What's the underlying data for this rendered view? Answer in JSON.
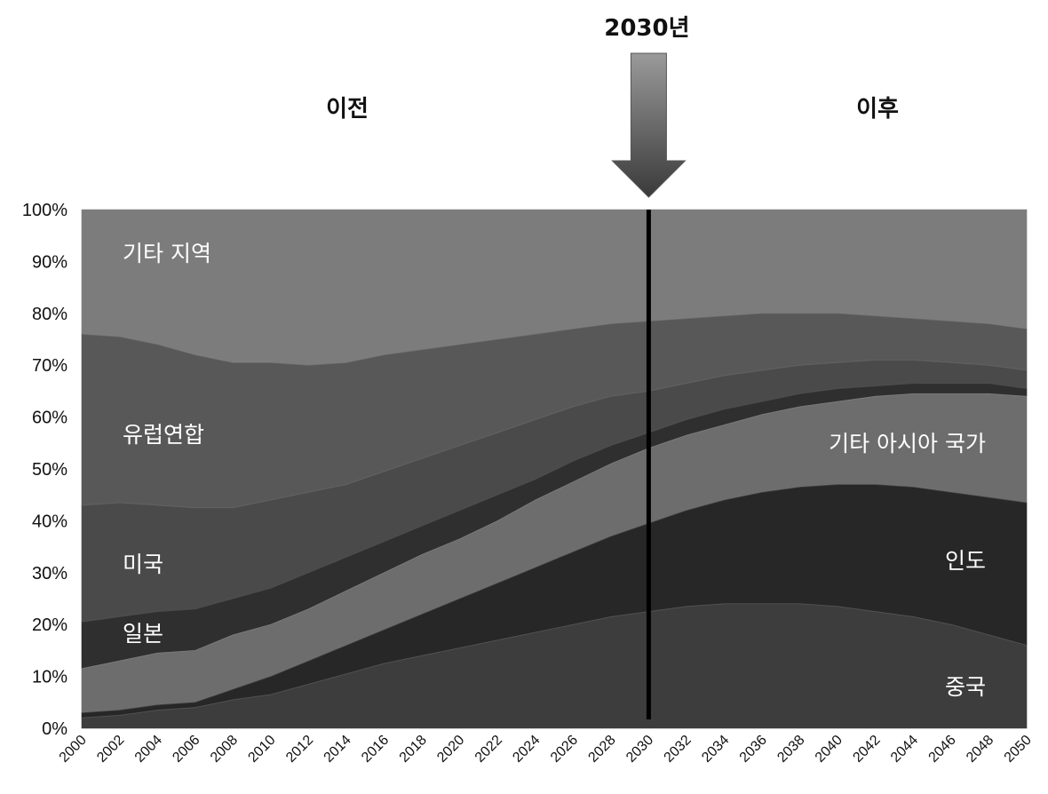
{
  "chart_data": {
    "type": "area",
    "stacked": true,
    "normalized": true,
    "annotation": {
      "year": 2030,
      "label": "2030년",
      "before_label": "이전",
      "after_label": "이후"
    },
    "x": [
      2000,
      2002,
      2004,
      2006,
      2008,
      2010,
      2012,
      2014,
      2016,
      2018,
      2020,
      2022,
      2024,
      2026,
      2028,
      2030,
      2032,
      2034,
      2036,
      2038,
      2040,
      2042,
      2044,
      2046,
      2048,
      2050
    ],
    "x_tick_labels": [
      "2000",
      "2002",
      "2004",
      "2006",
      "2008",
      "2010",
      "2012",
      "2014",
      "2016",
      "2018",
      "2020",
      "2022",
      "2024",
      "2026",
      "2028",
      "2030",
      "2032",
      "2034",
      "2036",
      "2038",
      "2040",
      "2042",
      "2044",
      "2046",
      "2048",
      "2050"
    ],
    "ylim": [
      0,
      100
    ],
    "y_ticks": [
      0,
      10,
      20,
      30,
      40,
      50,
      60,
      70,
      80,
      90,
      100
    ],
    "y_tick_labels": [
      "0%",
      "10%",
      "20%",
      "30%",
      "40%",
      "50%",
      "60%",
      "70%",
      "80%",
      "90%",
      "100%"
    ],
    "series": [
      {
        "name": "중국",
        "color": "#3d3d3d",
        "top": [
          2,
          2.5,
          3.5,
          4,
          5.5,
          6.5,
          8.5,
          10.5,
          12.5,
          14,
          15.5,
          17,
          18.5,
          20,
          21.5,
          22.5,
          23.5,
          24,
          24,
          24,
          23.5,
          22.5,
          21.5,
          20,
          18,
          16
        ]
      },
      {
        "name": "인도",
        "color": "#272727",
        "top": [
          3,
          3.5,
          4.5,
          5,
          7.5,
          10,
          13,
          16,
          19,
          22,
          25,
          28,
          31,
          34,
          37,
          39.5,
          42,
          44,
          45.5,
          46.5,
          47,
          47,
          46.5,
          45.5,
          44.5,
          43.5
        ]
      },
      {
        "name": "기타 아시아 국가",
        "color": "#6d6d6d",
        "top": [
          11.5,
          13,
          14.5,
          15,
          18,
          20,
          23,
          26.5,
          30,
          33.5,
          36.5,
          40,
          44,
          47.5,
          51,
          54,
          56.5,
          58.5,
          60.5,
          62,
          63,
          64,
          64.5,
          64.5,
          64.5,
          64
        ]
      },
      {
        "name": "일본",
        "color": "#2f2f2f",
        "top": [
          20.5,
          21.5,
          22.5,
          23,
          25,
          27,
          30,
          33,
          36,
          39,
          42,
          45,
          48,
          51.5,
          54.5,
          57,
          59.5,
          61.5,
          63,
          64.5,
          65.5,
          66,
          66.5,
          66.5,
          66.5,
          65.5
        ]
      },
      {
        "name": "미국",
        "color": "#4a4a4a",
        "top": [
          43,
          43.5,
          43,
          42.5,
          42.5,
          44,
          45.5,
          47,
          49.5,
          52,
          54.5,
          57,
          59.5,
          62,
          64,
          65,
          66.5,
          68,
          69,
          70,
          70.5,
          71,
          71,
          70.5,
          70,
          69
        ]
      },
      {
        "name": "유럽연합",
        "color": "#585858",
        "top": [
          76,
          75.5,
          74,
          72,
          70.5,
          70.5,
          70,
          70.5,
          72,
          73,
          74,
          75,
          76,
          77,
          78,
          78.5,
          79,
          79.5,
          80,
          80,
          80,
          79.5,
          79,
          78.5,
          78,
          77
        ]
      },
      {
        "name": "기타 지역",
        "color": "#7c7c7c",
        "top": [
          100,
          100,
          100,
          100,
          100,
          100,
          100,
          100,
          100,
          100,
          100,
          100,
          100,
          100,
          100,
          100,
          100,
          100,
          100,
          100,
          100,
          100,
          100,
          100,
          100,
          100
        ]
      }
    ]
  }
}
